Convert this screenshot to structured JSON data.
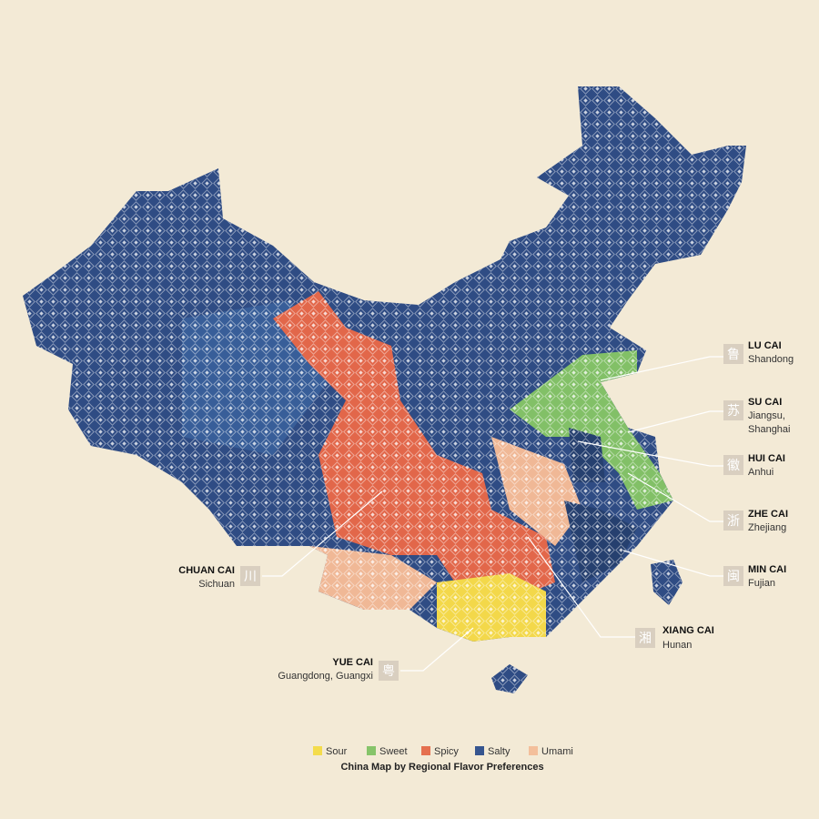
{
  "title": "China Map by Regional Flavor Preferences",
  "legend": [
    {
      "label": "Sour",
      "color": "#f4dc4c"
    },
    {
      "label": "Sweet",
      "color": "#86c46a"
    },
    {
      "label": "Spicy",
      "color": "#e5704f"
    },
    {
      "label": "Salty",
      "color": "#36558f"
    },
    {
      "label": "Umami",
      "color": "#f3bf9b"
    }
  ],
  "callouts": [
    {
      "name": "LU CAI",
      "region": [
        "Shandong"
      ],
      "glyph": "鲁"
    },
    {
      "name": "SU CAI",
      "region": [
        "Jiangsu,",
        "Shanghai"
      ],
      "glyph": "苏"
    },
    {
      "name": "HUI CAI",
      "region": [
        "Anhui"
      ],
      "glyph": "徽"
    },
    {
      "name": "ZHE CAI",
      "region": [
        "Zhejiang"
      ],
      "glyph": "浙"
    },
    {
      "name": "MIN CAI",
      "region": [
        "Fujian"
      ],
      "glyph": "闽"
    },
    {
      "name": "XIANG CAI",
      "region": [
        "Hunan"
      ],
      "glyph": "湘"
    },
    {
      "name": "CHUAN CAI",
      "region": [
        "Sichuan"
      ],
      "glyph": "川"
    },
    {
      "name": "YUE CAI",
      "region": [
        "Guangdong, Guangxi"
      ],
      "glyph": "粤"
    }
  ]
}
